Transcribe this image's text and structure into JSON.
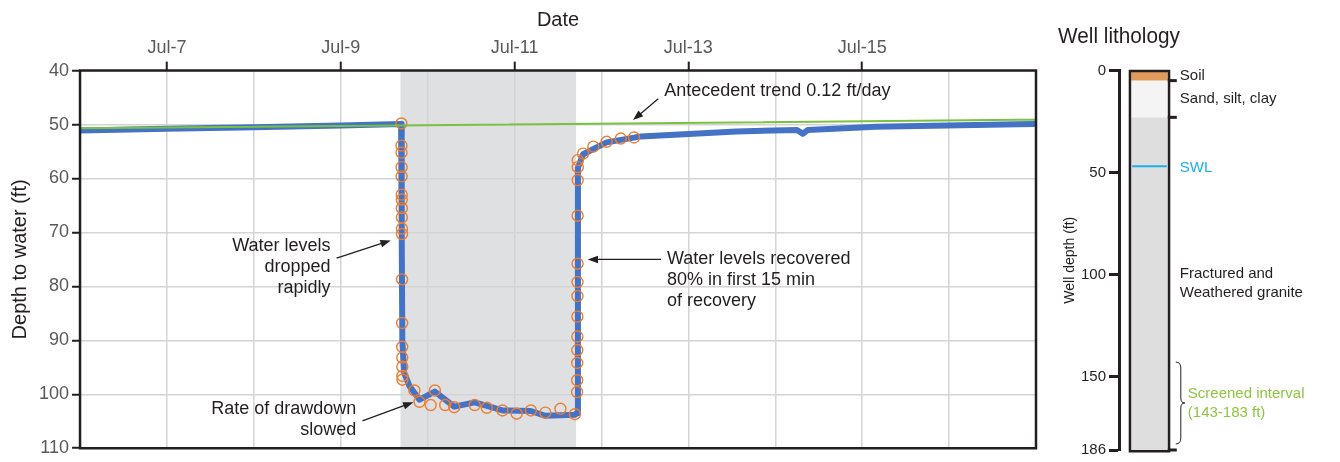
{
  "chart_data": [
    {
      "type": "line",
      "xlabel": "Date",
      "ylabel": "Depth to water (ft)",
      "xlim": [
        "--07-06",
        "--07-17"
      ],
      "xticks": [
        {
          "value": "--07-07",
          "label": "Jul-7"
        },
        {
          "value": "--07-08",
          "label": null
        },
        {
          "value": "--07-09",
          "label": "Jul-9"
        },
        {
          "value": "--07-10",
          "label": null
        },
        {
          "value": "--07-11",
          "label": "Jul-11"
        },
        {
          "value": "--07-12",
          "label": null
        },
        {
          "value": "--07-13",
          "label": "Jul-13"
        },
        {
          "value": "--07-14",
          "label": null
        },
        {
          "value": "--07-15",
          "label": "Jul-15"
        },
        {
          "value": "--07-16",
          "label": null
        }
      ],
      "ylim": [
        110,
        40
      ],
      "yticks": [
        40,
        50,
        60,
        70,
        80,
        90,
        100,
        110
      ],
      "grid": true,
      "bands": [
        {
          "axis": "x",
          "from": "--07-09T16:30",
          "to": "--07-11T17:00",
          "color": "#dfe0e2"
        }
      ],
      "series": [
        {
          "type": "line",
          "color": "#4472c4",
          "marker": "none",
          "x": [
            "--07-06",
            "--07-07",
            "--07-08",
            "--07-09",
            "--07-09T16:40",
            "--07-09T16:50",
            "--07-09T17:00",
            "--07-09T17:30",
            "--07-09T19:00",
            "--07-09T21:45",
            "--07-10T02:00",
            "--07-10T07:20",
            "--07-10T13:00",
            "--07-10T20:40",
            "--07-11T04:30",
            "--07-11T08:30",
            "--07-11T16:40",
            "--07-11T17:15",
            "--07-11T17:30",
            "--07-11T18:55",
            "--07-12T01:25",
            "--07-12T10:55",
            "--07-13T13:15",
            "--07-14T06:00",
            "--07-14T07:35",
            "--07-14T09:00",
            "--07-15T03:40",
            "--07-17"
          ],
          "values": [
            51.1,
            50.8,
            50.5,
            50.2,
            49.9,
            70,
            90,
            96,
            98.5,
            101,
            99.5,
            102.3,
            101.5,
            103,
            103.1,
            104,
            103.8,
            103.5,
            58,
            55.5,
            53.3,
            52.2,
            51.3,
            51.0,
            51.7,
            51.0,
            50.4,
            49.9
          ]
        },
        {
          "type": "scatter",
          "color": "#ed7d31",
          "marker": "circle",
          "x": [
            "--07-09T16:45",
            "--07-09T16:46",
            "--07-09T16:47",
            "--07-09T16:48",
            "--07-09T16:49",
            "--07-09T16:50",
            "--07-09T16:51",
            "--07-09T16:52",
            "--07-09T16:53",
            "--07-09T16:54",
            "--07-09T16:55",
            "--07-09T16:56",
            "--07-09T16:57",
            "--07-09T16:58",
            "--07-09T16:59",
            "--07-09T17:00",
            "--07-09T17:01",
            "--07-09T17:02",
            "--07-09T20:20",
            "--07-09T21:45",
            "--07-10T00:50",
            "--07-10T02:00",
            "--07-10T04:50",
            "--07-10T07:20",
            "--07-10T13:00",
            "--07-10T16:20",
            "--07-10T20:40",
            "--07-11T00:35",
            "--07-11T04:30",
            "--07-11T08:30",
            "--07-11T12:40",
            "--07-11T16:40",
            "--07-11T17:16",
            "--07-11T17:17",
            "--07-11T17:18",
            "--07-11T17:19",
            "--07-11T17:20",
            "--07-11T17:21",
            "--07-11T17:22",
            "--07-11T17:23",
            "--07-11T17:24",
            "--07-11T17:25",
            "--07-11T17:26",
            "--07-11T17:27",
            "--07-11T17:28",
            "--07-11T18:55",
            "--07-11T21:45",
            "--07-12T01:25",
            "--07-12T05:20",
            "--07-12T09:00"
          ],
          "values": [
            49.8,
            53.9,
            55.2,
            57.9,
            59.6,
            63.0,
            63.9,
            65.5,
            67.2,
            69.3,
            70.3,
            78.7,
            86.8,
            91.2,
            93.2,
            94.9,
            96.6,
            97.3,
            99.3,
            101.4,
            102.0,
            99.3,
            102.0,
            102.4,
            102.0,
            102.5,
            103.0,
            103.6,
            103.0,
            103.4,
            102.7,
            103.7,
            99.6,
            97.4,
            94.2,
            91.8,
            89.3,
            85.6,
            81.8,
            79.2,
            75.8,
            66.9,
            60.3,
            57.9,
            56.6,
            55.4,
            54.1,
            53.2,
            52.6,
            52.4
          ]
        },
        {
          "type": "line",
          "color": "#7ac143",
          "marker": "none",
          "x": [
            "--07-06",
            "--07-17"
          ],
          "values": [
            50.7,
            49.1
          ]
        }
      ],
      "annotations": [
        {
          "text": "Antecedent trend 0.12 ft/day",
          "x": "--07-12T08:30",
          "y": 49.3
        },
        "Water levels\ndropped\nrapidly",
        {
          "text": "Rate of drawdown\nslowed",
          "x": "--07-09T20:20",
          "y": 101.4
        },
        "Water levels recovered\n80% in first 15 min\nof recovery"
      ]
    },
    {
      "type": "bar",
      "title": "Well lithology",
      "ylabel": "Well depth (ft)",
      "stacked": true,
      "categories": [
        null
      ],
      "ylim": [
        186,
        0
      ],
      "yticks": [
        0,
        50,
        100,
        150,
        186
      ],
      "tick_labels": "y",
      "legend": "right",
      "series": [
        {
          "name": "Soil",
          "color": "#e09a5a",
          "values": [
            5
          ]
        },
        {
          "name": "Sand, silt, clay",
          "color": "#f4f4f4",
          "values": [
            18
          ]
        },
        {
          "name": "Fractured and\nWeathered granite",
          "color": "#dedede",
          "values": [
            163
          ]
        }
      ],
      "ref_lines": [
        {
          "axis": "y",
          "value": 47,
          "label": "SWL",
          "color": "#1ab0e8"
        }
      ],
      "annotations": [
        "Screened interval\n(143-183 ft)"
      ]
    }
  ]
}
